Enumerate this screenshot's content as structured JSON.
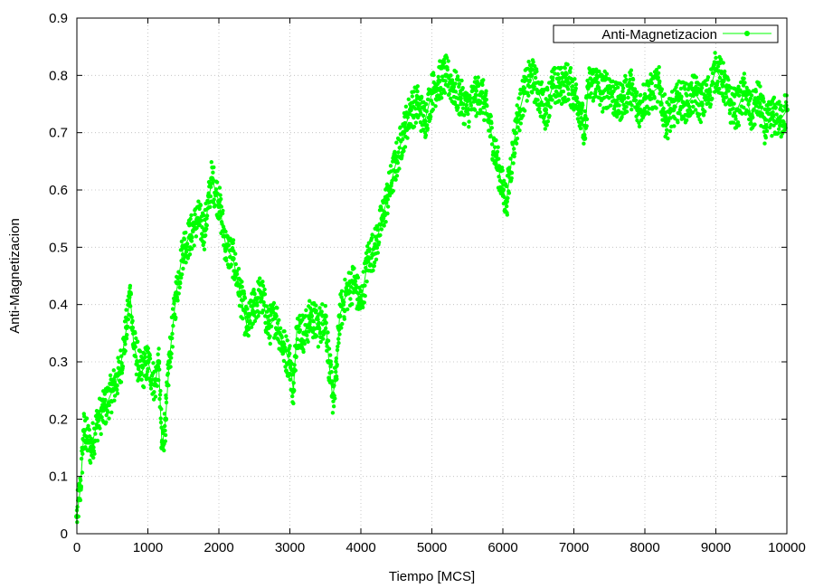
{
  "chart_data": {
    "type": "line",
    "title": "",
    "xlabel": "Tiempo [MCS]",
    "ylabel": "Anti-Magnetizacion",
    "xlim": [
      0,
      10000
    ],
    "ylim": [
      0,
      0.9
    ],
    "x_ticks": [
      "0",
      "1000",
      "2000",
      "3000",
      "4000",
      "5000",
      "6000",
      "7000",
      "8000",
      "9000",
      "10000"
    ],
    "y_ticks": [
      "0",
      "0.1",
      "0.2",
      "0.3",
      "0.4",
      "0.5",
      "0.6",
      "0.7",
      "0.8",
      "0.9"
    ],
    "grid": true,
    "legend_position": "top-right",
    "series": [
      {
        "name": "Anti-Magnetizacion",
        "color": "#00ff00",
        "marker": "point",
        "x": [
          0,
          50,
          100,
          200,
          300,
          400,
          500,
          600,
          700,
          750,
          800,
          900,
          1000,
          1100,
          1150,
          1200,
          1250,
          1300,
          1400,
          1500,
          1600,
          1700,
          1800,
          1900,
          2000,
          2100,
          2200,
          2300,
          2400,
          2500,
          2600,
          2700,
          2800,
          2900,
          3000,
          3050,
          3100,
          3200,
          3300,
          3400,
          3500,
          3550,
          3600,
          3650,
          3700,
          3800,
          3900,
          4000,
          4100,
          4200,
          4300,
          4400,
          4500,
          4600,
          4700,
          4800,
          4900,
          5000,
          5100,
          5200,
          5300,
          5400,
          5500,
          5600,
          5700,
          5800,
          5900,
          6000,
          6050,
          6100,
          6200,
          6300,
          6400,
          6500,
          6600,
          6700,
          6800,
          6900,
          7000,
          7100,
          7150,
          7200,
          7300,
          7400,
          7500,
          7600,
          7700,
          7800,
          7900,
          8000,
          8100,
          8200,
          8300,
          8400,
          8500,
          8600,
          8700,
          8800,
          8900,
          9000,
          9100,
          9200,
          9300,
          9400,
          9500,
          9600,
          9700,
          9800,
          9900,
          10000
        ],
        "y": [
          0.03,
          0.08,
          0.18,
          0.15,
          0.2,
          0.22,
          0.25,
          0.28,
          0.36,
          0.42,
          0.33,
          0.28,
          0.3,
          0.26,
          0.3,
          0.15,
          0.2,
          0.3,
          0.42,
          0.5,
          0.52,
          0.55,
          0.53,
          0.62,
          0.58,
          0.5,
          0.48,
          0.42,
          0.36,
          0.4,
          0.42,
          0.36,
          0.38,
          0.33,
          0.3,
          0.25,
          0.36,
          0.35,
          0.38,
          0.36,
          0.38,
          0.3,
          0.24,
          0.27,
          0.38,
          0.42,
          0.44,
          0.4,
          0.48,
          0.5,
          0.55,
          0.6,
          0.65,
          0.7,
          0.74,
          0.75,
          0.72,
          0.77,
          0.79,
          0.8,
          0.78,
          0.76,
          0.74,
          0.76,
          0.77,
          0.72,
          0.66,
          0.6,
          0.58,
          0.63,
          0.72,
          0.77,
          0.8,
          0.77,
          0.74,
          0.78,
          0.78,
          0.79,
          0.77,
          0.74,
          0.69,
          0.78,
          0.79,
          0.77,
          0.78,
          0.75,
          0.76,
          0.78,
          0.74,
          0.76,
          0.77,
          0.78,
          0.72,
          0.74,
          0.76,
          0.75,
          0.77,
          0.75,
          0.77,
          0.81,
          0.79,
          0.75,
          0.74,
          0.77,
          0.73,
          0.76,
          0.71,
          0.73,
          0.72,
          0.74
        ]
      }
    ]
  }
}
